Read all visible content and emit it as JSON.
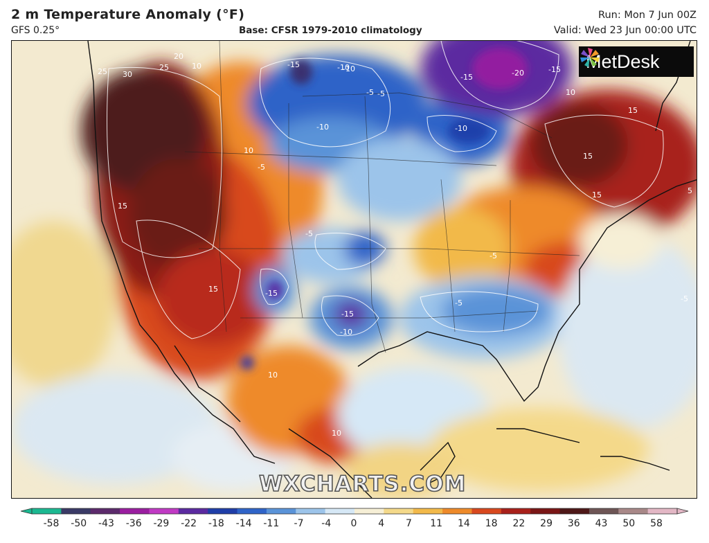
{
  "header": {
    "title": "2 m Temperature Anomaly (°F)",
    "model": "GFS 0.25°",
    "base": "Base: CFSR 1979-2010 climatology",
    "run": "Run: Mon 7 Jun 00Z",
    "valid": "Valid: Wed 23 Jun 00:00 UTC"
  },
  "brand": {
    "logo_text": "MetDesk",
    "watermark": "WXCHARTS.COM"
  },
  "map": {
    "contour_labels": [
      "-15",
      "-10",
      "-20",
      "-15",
      "-15",
      "-10",
      "-10",
      "-5",
      "-10",
      "-5",
      "25",
      "30",
      "20",
      "25",
      "10",
      "10",
      "15",
      "15",
      "10",
      "-5",
      "15",
      "15",
      "10",
      "-15",
      "-15",
      "-10",
      "-5",
      "-5",
      "15",
      "10",
      "-5",
      "5",
      "-5"
    ]
  },
  "legend": {
    "ticks": [
      "-58",
      "-50",
      "-43",
      "-36",
      "-29",
      "-22",
      "-18",
      "-14",
      "-11",
      "-7",
      "-4",
      "0",
      "4",
      "7",
      "11",
      "14",
      "18",
      "22",
      "29",
      "36",
      "43",
      "50",
      "58"
    ],
    "colors": [
      "#1bb891",
      "#3a3a66",
      "#5c2a6c",
      "#9a1ea0",
      "#c03ac4",
      "#5b2aa0",
      "#1f3ea8",
      "#2f64c8",
      "#5a93d8",
      "#9cc4ea",
      "#d6e8f6",
      "#f6efd6",
      "#f4d98a",
      "#f2b94a",
      "#ee8a2a",
      "#d8481e",
      "#a8201a",
      "#7a1616",
      "#4e1818",
      "#6e5555",
      "#a88888",
      "#e3b7c5"
    ]
  }
}
